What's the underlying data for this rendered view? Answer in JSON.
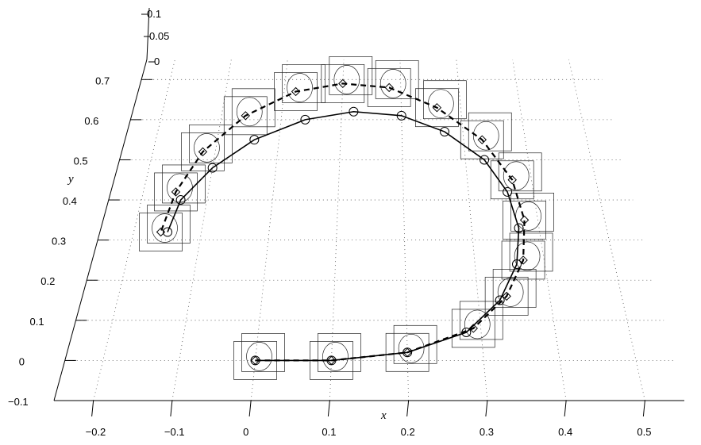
{
  "chart_data": {
    "type": "scatter",
    "title": "",
    "xlabel": "x",
    "ylabel": "y",
    "zlabel": "",
    "x_ticks": [
      "−0.2",
      "−0.1",
      "0",
      "0.1",
      "0.2",
      "0.3",
      "0.4",
      "0.5"
    ],
    "y_ticks": [
      "−0.1",
      "0",
      "0.1",
      "0.2",
      "0.3",
      "0.4",
      "0.5",
      "0.6",
      "0.7"
    ],
    "z_ticks": [
      "0",
      "0.05",
      "0.1"
    ],
    "xlim": [
      -0.25,
      0.55
    ],
    "ylim": [
      -0.1,
      0.75
    ],
    "grid": true,
    "legend": "none",
    "series": [
      {
        "marker": "circle",
        "line": "solid",
        "x": [
          0.0,
          0.1,
          0.2,
          0.28,
          0.33,
          0.36,
          0.37,
          0.36,
          0.33,
          0.27,
          0.2,
          0.12,
          0.04,
          -0.04,
          -0.1,
          -0.14,
          -0.15
        ],
        "y": [
          0.0,
          0.0,
          0.02,
          0.07,
          0.15,
          0.24,
          0.33,
          0.42,
          0.5,
          0.57,
          0.61,
          0.62,
          0.6,
          0.55,
          0.48,
          0.4,
          0.32
        ]
      },
      {
        "marker": "diamond",
        "line": "dashed",
        "x": [
          0.0,
          0.1,
          0.2,
          0.29,
          0.34,
          0.37,
          0.38,
          0.37,
          0.33,
          0.26,
          0.18,
          0.1,
          0.02,
          -0.06,
          -0.12,
          -0.15,
          -0.16
        ],
        "y": [
          0.0,
          0.0,
          0.02,
          0.08,
          0.16,
          0.25,
          0.35,
          0.45,
          0.55,
          0.63,
          0.68,
          0.69,
          0.67,
          0.61,
          0.52,
          0.42,
          0.32
        ]
      }
    ]
  }
}
